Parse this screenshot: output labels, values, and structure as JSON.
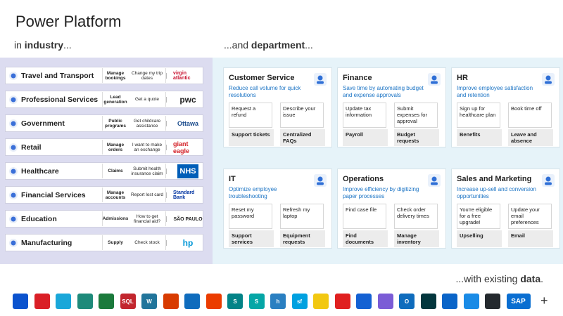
{
  "title": "Power Platform",
  "industry_label": {
    "pre": "in ",
    "bold": "industry",
    "post": "..."
  },
  "department_label": {
    "pre": "...and ",
    "bold": "department",
    "post": "..."
  },
  "data_label": {
    "pre": "...with existing ",
    "bold": "data",
    "post": "."
  },
  "industries": [
    {
      "name": "Travel and Transport",
      "function": "Manage bookings",
      "scenario": "Change my trip dates",
      "logo": "virgin atlantic",
      "icon": "airplane-icon",
      "logo_color": "#c8102e"
    },
    {
      "name": "Professional Services",
      "function": "Lead generation",
      "scenario": "Get a quote",
      "logo": "pwc",
      "icon": "briefcase-icon",
      "logo_color": "#222222"
    },
    {
      "name": "Government",
      "function": "Public programs",
      "scenario": "Get childcare assistance",
      "logo": "Ottawa",
      "icon": "government-icon",
      "logo_color": "#1a4b8c"
    },
    {
      "name": "Retail",
      "function": "Manage orders",
      "scenario": "I want to make an exchange",
      "logo": "giant eagle",
      "icon": "cart-icon",
      "logo_color": "#d32027"
    },
    {
      "name": "Healthcare",
      "function": "Claims",
      "scenario": "Submit health insurance claim",
      "logo": "NHS",
      "icon": "heart-pulse-icon",
      "logo_color": "#005eb8"
    },
    {
      "name": "Financial Services",
      "function": "Manage accounts",
      "scenario": "Report lost card",
      "logo": "Standard Bank",
      "icon": "finance-icon",
      "logo_color": "#0033a1"
    },
    {
      "name": "Education",
      "function": "Admissions",
      "scenario": "How to get financial aid?",
      "logo": "SÃO PAULO",
      "icon": "education-icon",
      "logo_color": "#222222"
    },
    {
      "name": "Manufacturing",
      "function": "Supply",
      "scenario": "Check stock",
      "logo": "hp",
      "icon": "factory-icon",
      "logo_color": "#0096d6"
    }
  ],
  "departments": [
    {
      "title": "Customer Service",
      "desc": "Reduce call volume for quick resolutions",
      "box1": "Request a refund",
      "box2": "Describe your issue",
      "tag1": "Support tickets",
      "tag2": "Centralized FAQs",
      "icon": "person-icon"
    },
    {
      "title": "Finance",
      "desc": "Save time by automating budget and expense approvals",
      "box1": "Update tax information",
      "box2": "Submit expenses for approval",
      "tag1": "Payroll",
      "tag2": "Budget requests",
      "icon": "bar-chart-dollar-icon"
    },
    {
      "title": "HR",
      "desc": "Improve employee satisfaction and retention",
      "box1": "Sign up for healthcare plan",
      "box2": "Book time off",
      "tag1": "Benefits",
      "tag2": "Leave and absence",
      "icon": "people-group-icon"
    },
    {
      "title": "IT",
      "desc": "Optimize employee troubleshooting",
      "box1": "Reset my password",
      "box2": "Refresh my laptop",
      "tag1": "Support services",
      "tag2": "Equipment requests",
      "icon": "laptop-icon"
    },
    {
      "title": "Operations",
      "desc": "Improve efficiency by digitizing paper processes",
      "box1": "Find case file",
      "box2": "Check order delivery times",
      "tag1": "Find documents",
      "tag2": "Manage inventory",
      "icon": "gears-icon"
    },
    {
      "title": "Sales and Marketing",
      "desc": "Increase up-sell and conversion opportunities",
      "box1": "You're eligible for a free upgrade!",
      "box2": "Update your email preferences",
      "tag1": "Upselling",
      "tag2": "Email",
      "icon": "megaphone-icon"
    }
  ],
  "apps": [
    {
      "icon": "dynamics-icon",
      "color": "#0b53ce",
      "text": ""
    },
    {
      "icon": "creative-cloud-icon",
      "color": "#da1f26",
      "text": ""
    },
    {
      "icon": "azure-devops-icon",
      "color": "#1aa7d9",
      "text": ""
    },
    {
      "icon": "mailchimp-icon",
      "color": "#1e8a7a",
      "text": ""
    },
    {
      "icon": "dynamics-crm-icon",
      "color": "#1b7a3c",
      "text": ""
    },
    {
      "icon": "sql-server-icon",
      "color": "#c2262e",
      "text": "SQL"
    },
    {
      "icon": "wordpress-icon",
      "color": "#21759b",
      "text": "W"
    },
    {
      "icon": "office-power-icon",
      "color": "#d83b01",
      "text": ""
    },
    {
      "icon": "planner-icon",
      "color": "#0f6cbd",
      "text": ""
    },
    {
      "icon": "office-icon",
      "color": "#eb3c00",
      "text": ""
    },
    {
      "icon": "sharepoint-icon",
      "color": "#038387",
      "text": "S"
    },
    {
      "icon": "sharepoint-alt-icon",
      "color": "#05a6a6",
      "text": "S"
    },
    {
      "icon": "h-app-icon",
      "color": "#2a7fc1",
      "text": "h"
    },
    {
      "icon": "salesforce-icon",
      "color": "#00a1e0",
      "text": "sf"
    },
    {
      "icon": "download-icon",
      "color": "#f2c811",
      "text": ""
    },
    {
      "icon": "adobe-acrobat-icon",
      "color": "#e02020",
      "text": ""
    },
    {
      "icon": "jira-icon",
      "color": "#1461d3",
      "text": ""
    },
    {
      "icon": "approvals-icon",
      "color": "#7b5cd6",
      "text": ""
    },
    {
      "icon": "outlook-icon",
      "color": "#0f6cbd",
      "text": "O"
    },
    {
      "icon": "zendesk-icon",
      "color": "#03363d",
      "text": ""
    },
    {
      "icon": "onedrive-icon",
      "color": "#0a64c8",
      "text": ""
    },
    {
      "icon": "azure-cloud-icon",
      "color": "#1a8be6",
      "text": ""
    },
    {
      "icon": "github-icon",
      "color": "#24292e",
      "text": ""
    },
    {
      "icon": "sap-icon",
      "color": "#0a6ed1",
      "text": "SAP"
    }
  ],
  "plus": "+"
}
